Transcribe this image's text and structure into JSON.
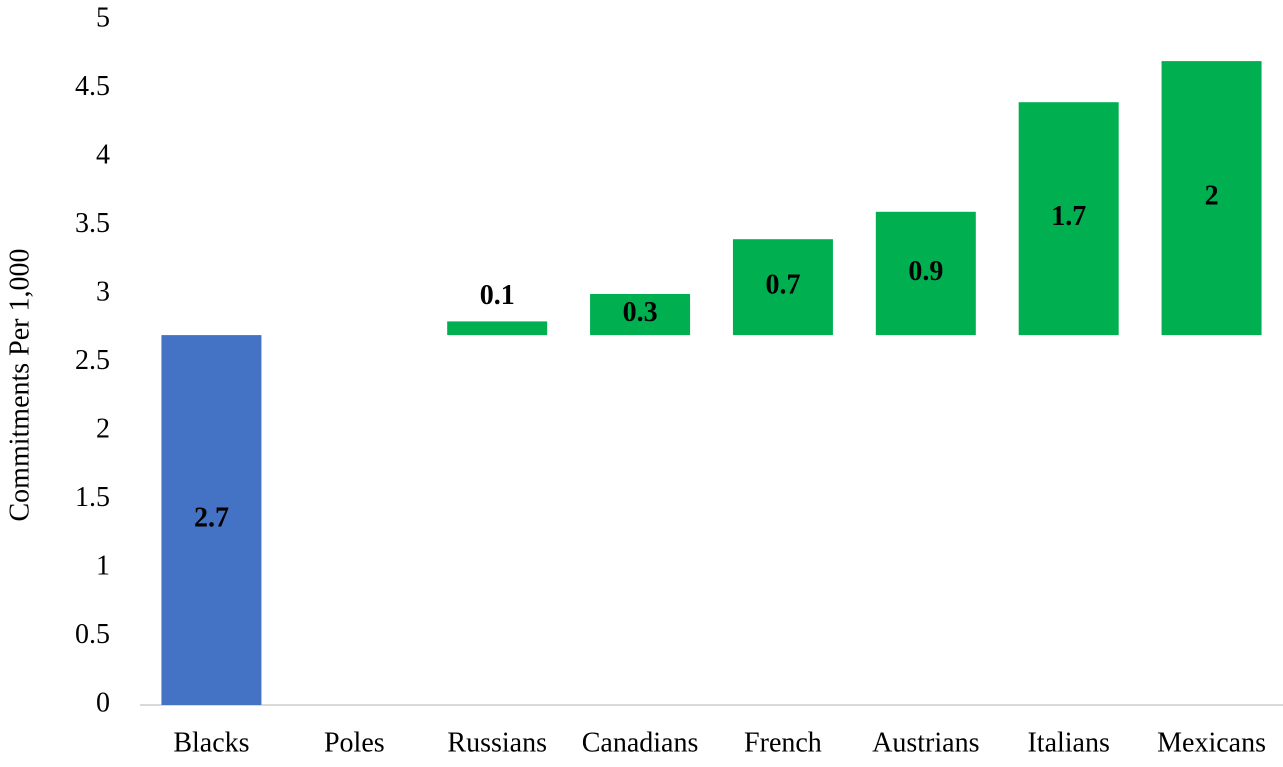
{
  "chart_data": {
    "type": "waterfall",
    "y_label": "Commitments Per 1,000",
    "categories": [
      "Blacks",
      "Poles",
      "Russians",
      "Canadians",
      "French",
      "Austrians",
      "Italians",
      "Mexicans"
    ],
    "values": [
      2.7,
      null,
      0.1,
      0.3,
      0.7,
      0.9,
      1.7,
      2
    ],
    "colors": [
      "#4472c4",
      null,
      "#00b050",
      "#00b050",
      "#00b050",
      "#00b050",
      "#00b050",
      "#00b050"
    ],
    "value_label_colors": [
      "#ffffff",
      null,
      "#000000",
      "#000000",
      "#000000",
      "#000000",
      "#000000",
      "#000000"
    ],
    "ylim": [
      0,
      5
    ],
    "yticks": [
      0,
      0.5,
      1,
      1.5,
      2,
      2.5,
      3,
      3.5,
      4,
      4.5,
      5
    ],
    "grid": false
  }
}
